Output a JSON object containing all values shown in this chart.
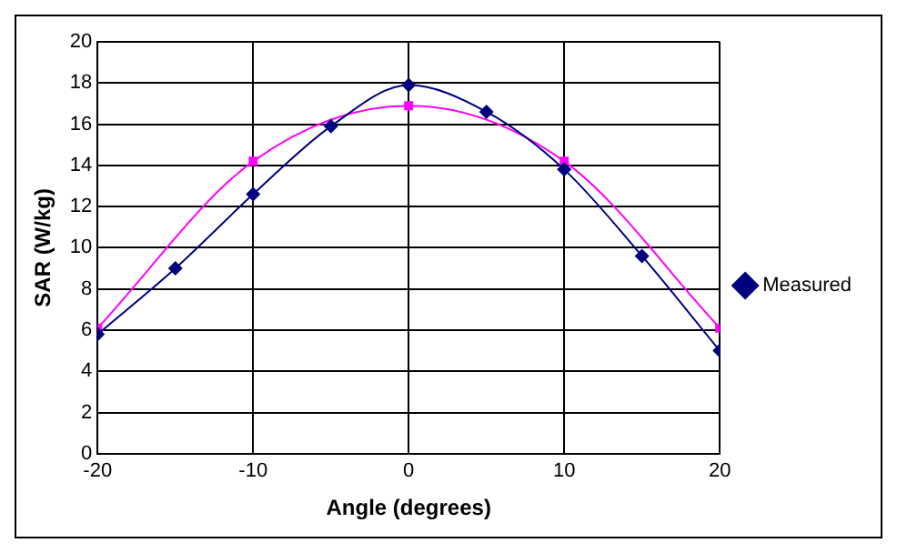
{
  "chart_data": {
    "type": "line",
    "xlabel": "Angle (degrees)",
    "ylabel": "SAR (W/kg)",
    "xlim": [
      -20,
      20
    ],
    "xticks": [
      -20,
      -10,
      0,
      10,
      20
    ],
    "ylim": [
      0,
      20
    ],
    "yticks": [
      0,
      2,
      4,
      6,
      8,
      10,
      12,
      14,
      16,
      18,
      20
    ],
    "grid": true,
    "legend": "right",
    "series": [
      {
        "name": "Measured",
        "color": "#000080",
        "marker": "diamond",
        "x": [
          -20,
          -15,
          -10,
          -5,
          0,
          5,
          10,
          15,
          20
        ],
        "values": [
          5.8,
          9.0,
          12.6,
          15.9,
          17.9,
          16.6,
          13.8,
          9.6,
          5.0
        ]
      },
      {
        "color": "#ff00ff",
        "marker": "square",
        "x": [
          -20,
          -10,
          0,
          10,
          20
        ],
        "values": [
          6.1,
          14.2,
          16.9,
          14.2,
          6.1
        ]
      }
    ]
  }
}
